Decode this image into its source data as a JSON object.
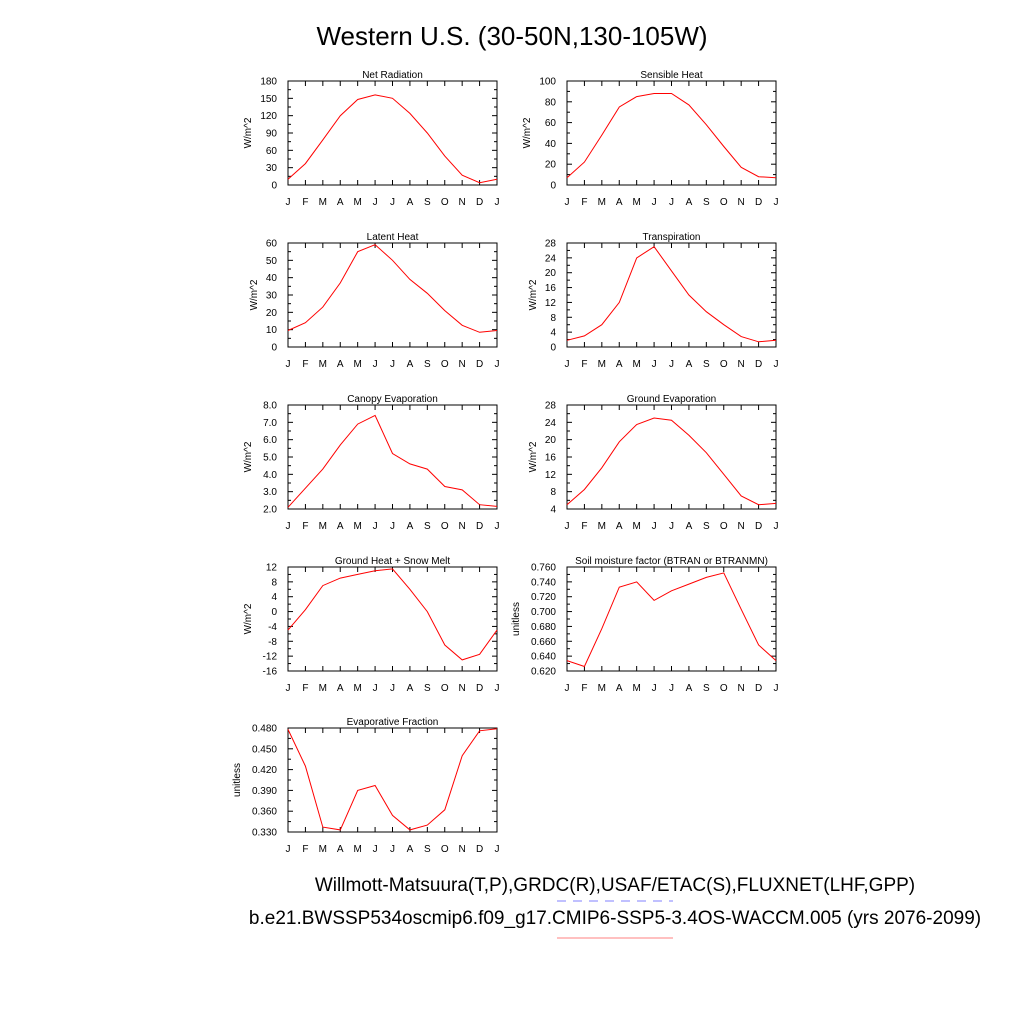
{
  "title": "Western U.S. (30-50N,130-105W)",
  "footer_line1": "Willmott-Matsuura(T,P),GRDC(R),USAF/ETAC(S),FLUXNET(LHF,GPP)",
  "footer_line2": "b.e21.BWSSP534oscmip6.f09_g17.CMIP6-SSP5-3.4OS-WACCM.005 (yrs 2076-2099)",
  "colors": {
    "series": "#ff0000",
    "footer_line1_underline": "#8080ff",
    "footer_line2_underline": "#ff8080"
  },
  "chart_data": [
    {
      "type": "line",
      "title": "Net Radiation",
      "ylabel": "W/m^2",
      "categories": [
        "J",
        "F",
        "M",
        "A",
        "M",
        "J",
        "J",
        "A",
        "S",
        "O",
        "N",
        "D",
        "J"
      ],
      "values": [
        10,
        37,
        78,
        120,
        148,
        156,
        150,
        124,
        90,
        50,
        17,
        4,
        10
      ],
      "ylim": [
        0,
        180
      ],
      "yticks": [
        "0",
        "30",
        "60",
        "90",
        "120",
        "150",
        "180"
      ]
    },
    {
      "type": "line",
      "title": "Sensible Heat",
      "ylabel": "W/m^2",
      "categories": [
        "J",
        "F",
        "M",
        "A",
        "M",
        "J",
        "J",
        "A",
        "S",
        "O",
        "N",
        "D",
        "J"
      ],
      "values": [
        7,
        22,
        48,
        75,
        85,
        88,
        88,
        77,
        58,
        37,
        17,
        8,
        7
      ],
      "ylim": [
        0,
        100
      ],
      "yticks": [
        "0",
        "20",
        "40",
        "60",
        "80",
        "100"
      ]
    },
    {
      "type": "line",
      "title": "Latent Heat",
      "ylabel": "W/m^2",
      "categories": [
        "J",
        "F",
        "M",
        "A",
        "M",
        "J",
        "J",
        "A",
        "S",
        "O",
        "N",
        "D",
        "J"
      ],
      "values": [
        9.5,
        14,
        23,
        37,
        55,
        59,
        50,
        39,
        31,
        21,
        12.5,
        8.5,
        9.5
      ],
      "ylim": [
        0,
        60
      ],
      "yticks": [
        "0",
        "10",
        "20",
        "30",
        "40",
        "50",
        "60"
      ]
    },
    {
      "type": "line",
      "title": "Transpiration",
      "ylabel": "W/m^2",
      "categories": [
        "J",
        "F",
        "M",
        "A",
        "M",
        "J",
        "J",
        "A",
        "S",
        "O",
        "N",
        "D",
        "J"
      ],
      "values": [
        1.8,
        3,
        6,
        12,
        24,
        27,
        20.5,
        14,
        9.5,
        6,
        2.8,
        1.4,
        1.8
      ],
      "ylim": [
        0,
        28
      ],
      "yticks": [
        "0",
        "4",
        "8",
        "12",
        "16",
        "20",
        "24",
        "28"
      ]
    },
    {
      "type": "line",
      "title": "Canopy Evaporation",
      "ylabel": "W/m^2",
      "categories": [
        "J",
        "F",
        "M",
        "A",
        "M",
        "J",
        "J",
        "A",
        "S",
        "O",
        "N",
        "D",
        "J"
      ],
      "values": [
        2.1,
        3.2,
        4.3,
        5.7,
        6.9,
        7.4,
        5.2,
        4.6,
        4.3,
        3.3,
        3.1,
        2.25,
        2.15
      ],
      "ylim": [
        2.0,
        8.0
      ],
      "yticks": [
        "2.0",
        "3.0",
        "4.0",
        "5.0",
        "6.0",
        "7.0",
        "8.0"
      ]
    },
    {
      "type": "line",
      "title": "Ground Evaporation",
      "ylabel": "W/m^2",
      "categories": [
        "J",
        "F",
        "M",
        "A",
        "M",
        "J",
        "J",
        "A",
        "S",
        "O",
        "N",
        "D",
        "J"
      ],
      "values": [
        5,
        8.5,
        13.5,
        19.5,
        23.5,
        25,
        24.5,
        21,
        17,
        12,
        7,
        5,
        5.3
      ],
      "ylim": [
        4,
        28
      ],
      "yticks": [
        "4",
        "8",
        "12",
        "16",
        "20",
        "24",
        "28"
      ]
    },
    {
      "type": "line",
      "title": "Ground Heat + Snow Melt",
      "ylabel": "W/m^2",
      "categories": [
        "J",
        "F",
        "M",
        "A",
        "M",
        "J",
        "J",
        "A",
        "S",
        "O",
        "N",
        "D",
        "J"
      ],
      "values": [
        -5,
        0.5,
        7,
        9,
        10,
        11,
        11.5,
        6,
        0,
        -9,
        -13,
        -11.5,
        -5
      ],
      "ylim": [
        -16,
        12
      ],
      "yticks": [
        "-16",
        "-12",
        "-8",
        "-4",
        "0",
        "4",
        "8",
        "12"
      ]
    },
    {
      "type": "line",
      "title": "Soil moisture factor (BTRAN or BTRANMN)",
      "ylabel": "unitless",
      "categories": [
        "J",
        "F",
        "M",
        "A",
        "M",
        "J",
        "J",
        "A",
        "S",
        "O",
        "N",
        "D",
        "J"
      ],
      "values": [
        0.634,
        0.626,
        0.677,
        0.733,
        0.74,
        0.715,
        0.728,
        0.737,
        0.746,
        0.752,
        0.703,
        0.655,
        0.634
      ],
      "ylim": [
        0.62,
        0.76
      ],
      "yticks": [
        "0.620",
        "0.640",
        "0.660",
        "0.680",
        "0.700",
        "0.720",
        "0.740",
        "0.760"
      ]
    },
    {
      "type": "line",
      "title": "Evaporative Fraction",
      "ylabel": "unitless",
      "categories": [
        "J",
        "F",
        "M",
        "A",
        "M",
        "J",
        "J",
        "A",
        "S",
        "O",
        "N",
        "D",
        "J"
      ],
      "values": [
        0.478,
        0.425,
        0.337,
        0.333,
        0.39,
        0.397,
        0.354,
        0.333,
        0.34,
        0.362,
        0.44,
        0.476,
        0.479
      ],
      "ylim": [
        0.33,
        0.48
      ],
      "yticks": [
        "0.330",
        "0.360",
        "0.390",
        "0.420",
        "0.450",
        "0.480"
      ]
    }
  ]
}
